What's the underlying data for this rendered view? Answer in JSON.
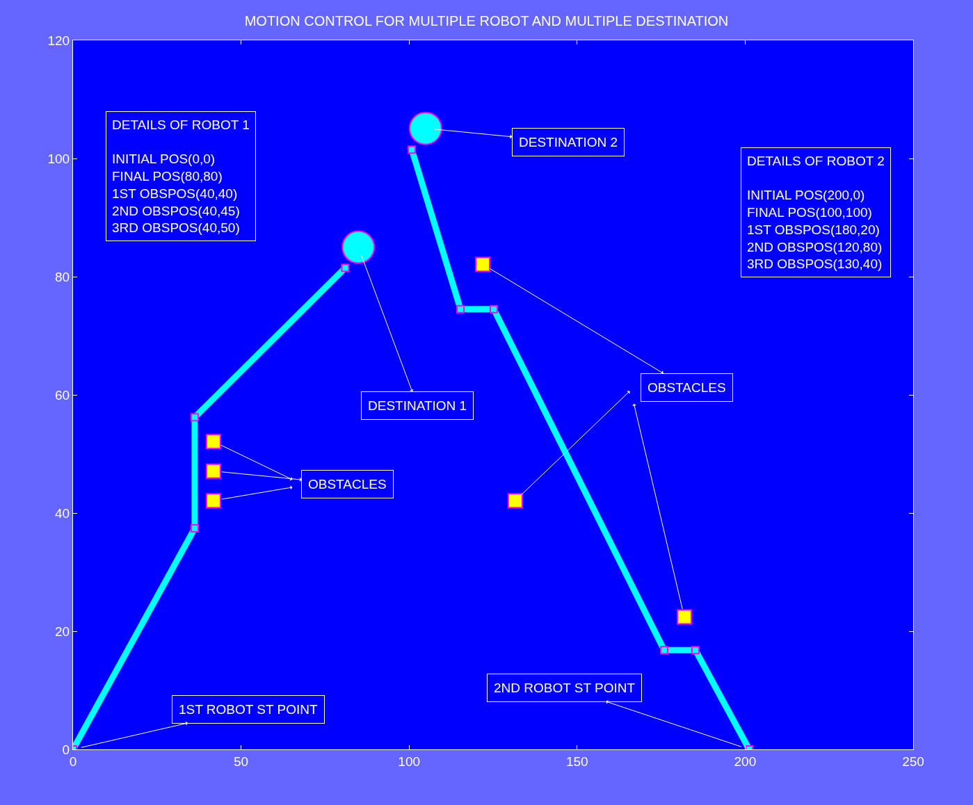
{
  "chart_data": {
    "type": "line",
    "title": "MOTION CONTROL FOR MULTIPLE ROBOT AND MULTIPLE DESTINATION",
    "xlim": [
      0,
      250
    ],
    "xticks": [
      0,
      50,
      100,
      150,
      200,
      250
    ],
    "ylim": [
      0,
      120
    ],
    "yticks": [
      0,
      20,
      40,
      60,
      80,
      100,
      120
    ],
    "series": [
      {
        "color": "#00ffff",
        "marker": "square",
        "x": [
          0,
          36.2,
          36.2,
          81
        ],
        "values": [
          0,
          37.4,
          56.2,
          81.5
        ]
      },
      {
        "color": "#00ffff",
        "marker": "square",
        "x": [
          201.2,
          185.2,
          175.9,
          125.2,
          115.3,
          100.8
        ],
        "values": [
          0,
          16.8,
          16.8,
          74.5,
          74.5,
          101.5
        ]
      },
      {
        "type": "scatter",
        "color": "#ffff00",
        "marker": "square",
        "x": [
          41.8,
          41.8,
          41.8,
          121.9,
          131.6,
          181.9
        ],
        "values": [
          52.1,
          47.1,
          42.1,
          82.1,
          42.1,
          22.4
        ]
      },
      {
        "type": "scatter",
        "color": "#00ffff",
        "marker": "circle",
        "x": [
          84.9,
          104.9
        ],
        "values": [
          85,
          105.1
        ]
      }
    ],
    "annotations": [
      "DETAILS OF ROBOT 1\n\nINITIAL POS(0,0)\nFINAL POS(80,80)\n1ST OBSPOS(40,40)\n2ND OBSPOS(40,45)\n3RD OBSPOS(40,50)\n",
      "DETAILS OF ROBOT 2\n\nINITIAL POS(200,0)\nFINAL POS(100,100)\n1ST OBSPOS(180,20)\n2ND OBSPOS(120,80)\n3RD OBSPOS(130,40)\n\n",
      {
        "text": "DESTINATION 1",
        "x": 84.9,
        "y": 85
      },
      {
        "text": "DESTINATION 2",
        "x": 104.9,
        "y": 105.1
      },
      {
        "text": "OBSTACLES",
        "x": 41.8,
        "y": 47.1
      },
      {
        "text": "OBSTACLES",
        "x": 121.9,
        "y": 82.1
      },
      {
        "text": "1ST ROBOT ST POINT",
        "x": 0,
        "y": 0
      },
      {
        "text": "2ND ROBOT ST POINT",
        "x": 201.2,
        "y": 0
      }
    ]
  }
}
